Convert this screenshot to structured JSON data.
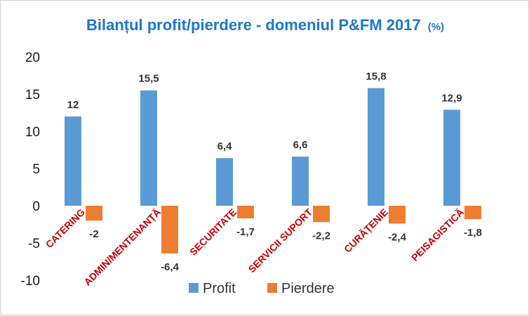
{
  "chart_data": {
    "type": "bar",
    "title": "Bilanțul profit/pierdere  - domeniul P&FM 2017",
    "title_unit": "(%)",
    "categories": [
      "CATERING",
      "ADMIN/MENTENANȚĂ",
      "SECURITATE",
      "SERVICII SUPORT",
      "CURĂȚENIE",
      "PEISAGISTICĂ"
    ],
    "series": [
      {
        "name": "Profit",
        "color": "#5b9bd5",
        "values": [
          12,
          15.5,
          6.4,
          6.6,
          15.8,
          12.9
        ],
        "labels": [
          "12",
          "15,5",
          "6,4",
          "6,6",
          "15,8",
          "12,9"
        ]
      },
      {
        "name": "Pierdere",
        "color": "#ed7d31",
        "values": [
          -2,
          -6.4,
          -1.7,
          -2.2,
          -2.4,
          -1.8
        ],
        "labels": [
          "-2",
          "-6,4",
          "-1,7",
          "-2,2",
          "-2,4",
          "-1,8"
        ]
      }
    ],
    "ylim": [
      -10,
      20
    ],
    "yticks": [
      20,
      15,
      10,
      5,
      0,
      -5,
      -10
    ],
    "grid": false,
    "legend": "bottom"
  }
}
